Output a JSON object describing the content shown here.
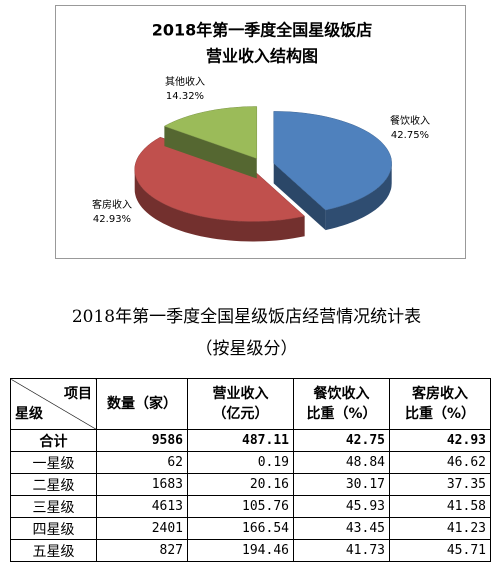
{
  "chart_data": {
    "type": "pie",
    "title": [
      "2018年第一季度全国星级饭店",
      "营业收入结构图"
    ],
    "categories": [
      "餐饮收入",
      "客房收入",
      "其他收入"
    ],
    "values": [
      42.75,
      42.93,
      14.32
    ],
    "value_labels": [
      "42.75%",
      "42.93%",
      "14.32%"
    ],
    "colors": [
      "#4f81bd",
      "#c0504d",
      "#9bbb59"
    ]
  },
  "table": {
    "title": "2018年第一季度全国星级饭店经营情况统计表",
    "subtitle": "（按星级分）",
    "header": {
      "corner": [
        "项目",
        "星级"
      ],
      "columns": [
        [
          "数量（家）"
        ],
        [
          "营业收入",
          "（亿元）"
        ],
        [
          "餐饮收入",
          "比重（%）"
        ],
        [
          "客房收入",
          "比重（%）"
        ]
      ]
    },
    "rows": [
      [
        "合计",
        9586,
        487.11,
        42.75,
        42.93
      ],
      [
        "一星级",
        62,
        0.19,
        48.84,
        46.62
      ],
      [
        "二星级",
        1683,
        20.16,
        30.17,
        37.35
      ],
      [
        "三星级",
        4613,
        105.76,
        45.93,
        41.58
      ],
      [
        "四星级",
        2401,
        166.54,
        43.45,
        41.23
      ],
      [
        "五星级",
        827,
        194.46,
        41.73,
        45.71
      ]
    ]
  }
}
